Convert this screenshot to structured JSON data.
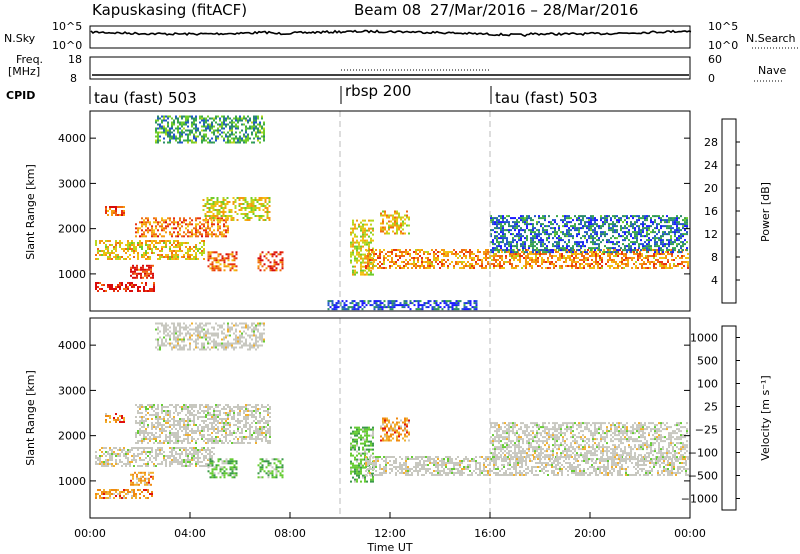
{
  "header": {
    "station": "Kapuskasing (fitACF)",
    "beam": "Beam 08",
    "dates": "27/Mar/2016 – 28/Mar/2016"
  },
  "panels": {
    "nsky": {
      "left_label": "N.Sky",
      "right_label": "N.Search",
      "left_ticks": [
        "10^5",
        "10^0"
      ],
      "right_ticks": [
        "10^5",
        "10^0"
      ]
    },
    "freq": {
      "left_label_1": "Freq.",
      "left_label_2": "[MHz]",
      "right_label": "Nave",
      "left_ticks": [
        "18",
        "8"
      ],
      "right_ticks": [
        "60",
        "0"
      ]
    },
    "cpid": {
      "label": "CPID",
      "segments": [
        {
          "name": "tau (fast) 503",
          "start_hour": 0
        },
        {
          "name": "rbsp 200",
          "start_hour": 10
        },
        {
          "name": "tau (fast) 503",
          "start_hour": 16
        }
      ]
    }
  },
  "x_axis": {
    "label": "Time UT",
    "ticks": [
      "00:00",
      "04:00",
      "08:00",
      "12:00",
      "16:00",
      "20:00",
      "00:00"
    ]
  },
  "chart_data": [
    {
      "type": "heatmap",
      "name": "power",
      "ylabel": "Slant Range [km]",
      "yticks": [
        1000,
        2000,
        3000,
        4000
      ],
      "xlim": [
        0,
        24
      ],
      "ylim": [
        180,
        4600
      ],
      "colorbar": {
        "label": "Power [dB]",
        "ticks": [
          "4",
          "8",
          "12",
          "16",
          "20",
          "24",
          "28"
        ],
        "colors": [
          "#1a1aff",
          "#2255cc",
          "#2b8a6e",
          "#3aa84a",
          "#6fcc2a",
          "#b8d71e",
          "#f2c012",
          "#f59a10",
          "#f06a10",
          "#e8300e",
          "#d80a0a"
        ]
      },
      "regions": [
        {
          "x": [
            0.2,
            2.6
          ],
          "y": [
            640,
            820
          ],
          "level": 0.95
        },
        {
          "x": [
            0.2,
            4.6
          ],
          "y": [
            1350,
            1750
          ],
          "level": 0.6
        },
        {
          "x": [
            1.8,
            5.5
          ],
          "y": [
            1850,
            2250
          ],
          "level": 0.75
        },
        {
          "x": [
            4.5,
            7.2
          ],
          "y": [
            2200,
            2700
          ],
          "level": 0.55
        },
        {
          "x": [
            0.6,
            1.4
          ],
          "y": [
            2300,
            2500
          ],
          "level": 0.8
        },
        {
          "x": [
            2.6,
            7.0
          ],
          "y": [
            3900,
            4500
          ],
          "level": 0.3
        },
        {
          "x": [
            1.6,
            2.5
          ],
          "y": [
            900,
            1200
          ],
          "level": 0.9
        },
        {
          "x": [
            6.7,
            7.7
          ],
          "y": [
            1100,
            1500
          ],
          "level": 0.85
        },
        {
          "x": [
            4.7,
            5.9
          ],
          "y": [
            1100,
            1500
          ],
          "level": 0.75
        },
        {
          "x": [
            10.4,
            11.3
          ],
          "y": [
            1000,
            2200
          ],
          "level": 0.55
        },
        {
          "x": [
            11.0,
            23.9
          ],
          "y": [
            1150,
            1550
          ],
          "level": 0.7
        },
        {
          "x": [
            11.6,
            12.8
          ],
          "y": [
            1900,
            2400
          ],
          "level": 0.6
        },
        {
          "x": [
            16.0,
            23.9
          ],
          "y": [
            1500,
            2300
          ],
          "level": 0.2
        },
        {
          "x": [
            9.5,
            15.5
          ],
          "y": [
            200,
            420
          ],
          "level": 0.15
        }
      ]
    },
    {
      "type": "heatmap",
      "name": "velocity",
      "ylabel": "Slant Range [km]",
      "yticks": [
        1000,
        2000,
        3000,
        4000
      ],
      "xlim": [
        0,
        24
      ],
      "ylim": [
        180,
        4600
      ],
      "colorbar": {
        "label": "Velocity [m s⁻¹]",
        "ticks": [
          "1000",
          "500",
          "100",
          "25",
          "−25",
          "−100",
          "−500",
          "−1000"
        ],
        "colors": [
          "#2233cc",
          "#2a7a78",
          "#3a9a48",
          "#66cc33",
          "#c8c8c0",
          "#f0b030",
          "#f08a10",
          "#f05a0c",
          "#e01010"
        ]
      },
      "regions": [
        {
          "x": [
            0.2,
            2.6
          ],
          "y": [
            640,
            820
          ],
          "level": "neg"
        },
        {
          "x": [
            0.2,
            5.0
          ],
          "y": [
            1350,
            1750
          ],
          "level": "zero"
        },
        {
          "x": [
            1.8,
            7.2
          ],
          "y": [
            1850,
            2700
          ],
          "level": "zero"
        },
        {
          "x": [
            2.6,
            7.0
          ],
          "y": [
            3900,
            4500
          ],
          "level": "zero"
        },
        {
          "x": [
            0.6,
            1.4
          ],
          "y": [
            2300,
            2500
          ],
          "level": "neg"
        },
        {
          "x": [
            1.6,
            2.5
          ],
          "y": [
            900,
            1200
          ],
          "level": "neg"
        },
        {
          "x": [
            4.7,
            5.9
          ],
          "y": [
            1100,
            1500
          ],
          "level": "pos"
        },
        {
          "x": [
            6.7,
            7.7
          ],
          "y": [
            1100,
            1500
          ],
          "level": "pos"
        },
        {
          "x": [
            10.4,
            11.3
          ],
          "y": [
            1000,
            2200
          ],
          "level": "pos"
        },
        {
          "x": [
            11.0,
            23.9
          ],
          "y": [
            1150,
            1550
          ],
          "level": "zero"
        },
        {
          "x": [
            11.6,
            12.8
          ],
          "y": [
            1900,
            2400
          ],
          "level": "neg"
        },
        {
          "x": [
            16.0,
            23.9
          ],
          "y": [
            1500,
            2300
          ],
          "level": "zero"
        }
      ]
    }
  ]
}
